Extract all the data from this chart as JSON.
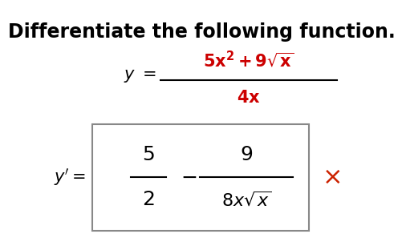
{
  "title": "Differentiate the following function.",
  "title_fontsize": 17,
  "title_color": "#000000",
  "background_color": "#ffffff",
  "numerator_color": "#cc0000",
  "denominator_color": "#cc0000",
  "result_color": "#000000",
  "cross_color": "#cc2200",
  "box_color": "#888888",
  "fig_width": 5.02,
  "fig_height": 3.02,
  "fig_dpi": 100
}
